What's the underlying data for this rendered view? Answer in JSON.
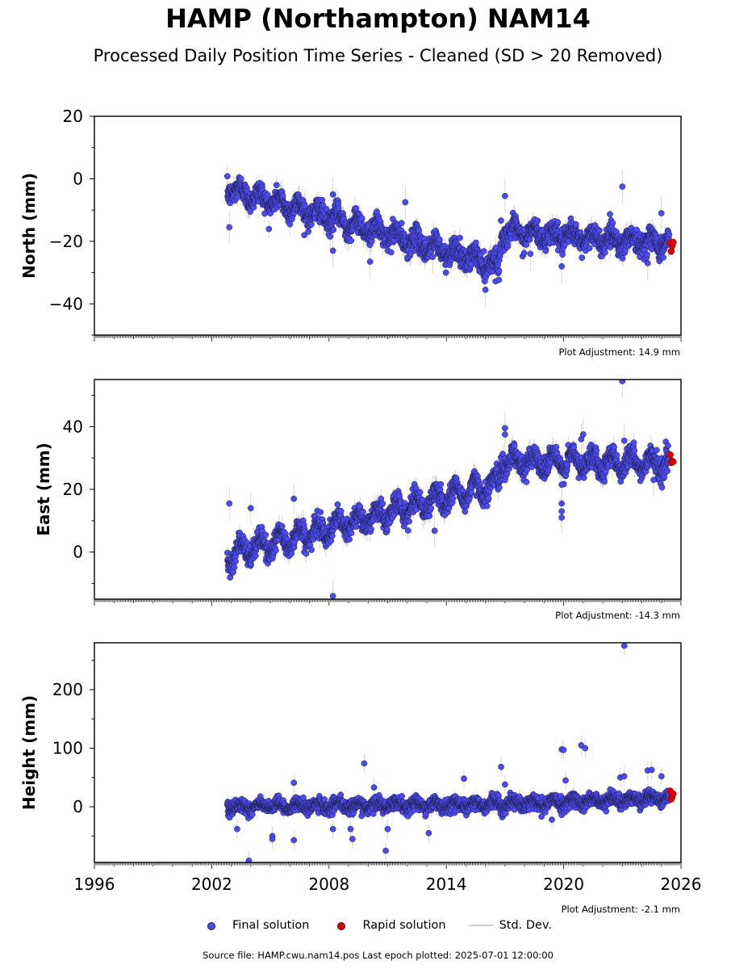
{
  "title": "HAMP (Northampton) NAM14",
  "subtitle": "Processed Daily Position Time Series - Cleaned (SD > 20 Removed)",
  "source": "Source file: HAMP.cwu.nam14.pos  Last epoch plotted: 2025-07-01 12:00:00",
  "legend": {
    "final": "Final solution",
    "rapid": "Rapid solution",
    "std": "Std. Dev."
  },
  "colors": {
    "final": "#4b4bf0",
    "rapid": "#e00000",
    "std": "#cccccc",
    "edge": "#1a1a3a"
  },
  "chart_data": [
    {
      "type": "scatter",
      "ylabel": "North (mm)",
      "adjustment": "Plot Adjustment: 14.9 mm",
      "xlim": [
        1996,
        2026
      ],
      "ylim": [
        -50,
        20
      ],
      "yticks": [
        20,
        0,
        -20,
        -40
      ],
      "xticks": [],
      "trend": [
        [
          2002.8,
          -3
        ],
        [
          2016.7,
          -28
        ],
        [
          2016.8,
          -17
        ],
        [
          2025.4,
          -20.5
        ]
      ],
      "seasonal_amplitude": 2,
      "noise": 1.8,
      "outliers": [
        [
          2002.9,
          -15.5
        ],
        [
          2008.2,
          -23
        ],
        [
          2008.2,
          -5
        ],
        [
          2010.1,
          -26.5
        ],
        [
          2011.9,
          -7.5
        ],
        [
          2013.3,
          -25
        ],
        [
          2016.0,
          -35.5
        ],
        [
          2017.0,
          -5.5
        ],
        [
          2018.3,
          -24
        ],
        [
          2019.9,
          -28
        ],
        [
          2023.0,
          -2.5
        ],
        [
          2024.3,
          -27
        ],
        [
          2025.0,
          -11
        ]
      ],
      "rapid": [
        [
          2025.45,
          -20.5
        ],
        [
          2025.5,
          -23.2
        ],
        [
          2025.55,
          -21.5
        ],
        [
          2025.6,
          -20.3
        ]
      ]
    },
    {
      "type": "scatter",
      "ylabel": "East (mm)",
      "adjustment": "Plot Adjustment: -14.3 mm",
      "xlim": [
        1996,
        2026
      ],
      "ylim": [
        -15,
        55
      ],
      "yticks": [
        40,
        20,
        0
      ],
      "xticks": [],
      "trend": [
        [
          2002.8,
          -1
        ],
        [
          2016.7,
          22
        ],
        [
          2016.8,
          29
        ],
        [
          2025.4,
          28.5
        ]
      ],
      "seasonal_amplitude": 2.8,
      "noise": 1.7,
      "outliers": [
        [
          2002.9,
          15.5
        ],
        [
          2004.0,
          14
        ],
        [
          2006.2,
          17
        ],
        [
          2008.2,
          -14
        ],
        [
          2013.4,
          6.8
        ],
        [
          2017.0,
          39.5
        ],
        [
          2017.0,
          37.5
        ],
        [
          2019.9,
          21.5
        ],
        [
          2019.9,
          15.5
        ],
        [
          2019.9,
          13
        ],
        [
          2019.9,
          11
        ],
        [
          2020.9,
          36
        ],
        [
          2021.0,
          37.5
        ],
        [
          2023.0,
          54.5
        ],
        [
          2023.1,
          35.5
        ],
        [
          2024.6,
          23
        ]
      ],
      "rapid": [
        [
          2025.45,
          31
        ],
        [
          2025.5,
          28.5
        ],
        [
          2025.55,
          29
        ],
        [
          2025.6,
          28.8
        ]
      ]
    },
    {
      "type": "scatter",
      "ylabel": "Height (mm)",
      "adjustment": "Plot Adjustment: -2.1 mm",
      "xlim": [
        1996,
        2026
      ],
      "ylim": [
        -95,
        280
      ],
      "yticks": [
        200,
        100,
        0
      ],
      "xticks": [
        1996,
        2002,
        2008,
        2014,
        2020,
        2026
      ],
      "trend": [
        [
          2002.8,
          0
        ],
        [
          2016.0,
          4
        ],
        [
          2019.0,
          7
        ],
        [
          2025.4,
          15
        ]
      ],
      "seasonal_amplitude": 5,
      "noise": 5.5,
      "outliers": [
        [
          2003.3,
          -38
        ],
        [
          2003.9,
          -92
        ],
        [
          2005.1,
          -50
        ],
        [
          2005.1,
          -55
        ],
        [
          2006.2,
          41
        ],
        [
          2006.2,
          -57
        ],
        [
          2008.2,
          -38
        ],
        [
          2009.1,
          -38
        ],
        [
          2009.2,
          -55
        ],
        [
          2009.8,
          74
        ],
        [
          2010.3,
          33
        ],
        [
          2010.9,
          -75
        ],
        [
          2011.0,
          -38
        ],
        [
          2013.1,
          -45
        ],
        [
          2014.9,
          48
        ],
        [
          2016.8,
          68
        ],
        [
          2017.0,
          38
        ],
        [
          2019.4,
          -22
        ],
        [
          2019.9,
          98
        ],
        [
          2020.0,
          97
        ],
        [
          2020.1,
          45
        ],
        [
          2020.9,
          105
        ],
        [
          2021.1,
          100
        ],
        [
          2022.9,
          50
        ],
        [
          2023.1,
          275
        ],
        [
          2023.1,
          52
        ],
        [
          2024.3,
          62
        ],
        [
          2024.5,
          63
        ],
        [
          2025.0,
          52
        ]
      ],
      "rapid": [
        [
          2025.45,
          27
        ],
        [
          2025.5,
          13
        ],
        [
          2025.55,
          17
        ],
        [
          2025.6,
          22
        ]
      ]
    }
  ]
}
